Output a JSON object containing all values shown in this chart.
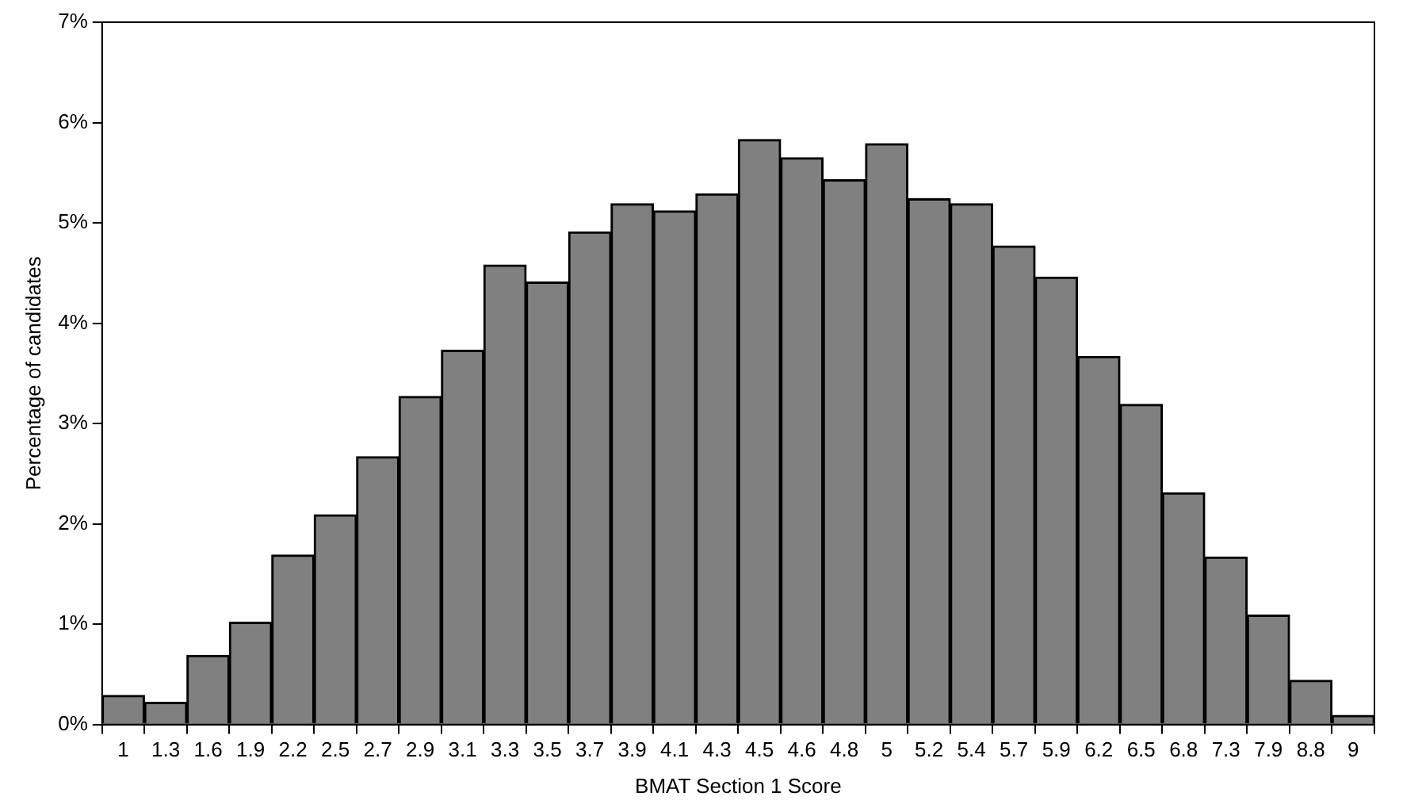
{
  "chart_data": {
    "type": "bar",
    "xlabel": "BMAT Section 1 Score",
    "ylabel": "Percentage of candidates",
    "categories": [
      "1",
      "1.3",
      "1.6",
      "1.9",
      "2.2",
      "2.5",
      "2.7",
      "2.9",
      "3.1",
      "3.3",
      "3.5",
      "3.7",
      "3.9",
      "4.1",
      "4.3",
      "4.5",
      "4.6",
      "4.8",
      "5",
      "5.2",
      "5.4",
      "5.7",
      "5.9",
      "6.2",
      "6.5",
      "6.8",
      "7.3",
      "7.9",
      "8.8",
      "9"
    ],
    "values": [
      0.29,
      0.22,
      0.69,
      1.02,
      1.69,
      2.09,
      2.67,
      3.27,
      3.73,
      4.58,
      4.41,
      4.91,
      5.19,
      5.12,
      5.29,
      5.83,
      5.65,
      5.43,
      5.79,
      5.24,
      5.19,
      4.77,
      4.46,
      3.67,
      3.19,
      2.31,
      1.67,
      1.09,
      0.44,
      0.09
    ],
    "color": "#808080",
    "ylim": [
      0,
      7
    ],
    "yticks": [
      {
        "value": 0,
        "label": "0%"
      },
      {
        "value": 1,
        "label": "1%"
      },
      {
        "value": 2,
        "label": "2%"
      },
      {
        "value": 3,
        "label": "3%"
      },
      {
        "value": 4,
        "label": "4%"
      },
      {
        "value": 5,
        "label": "5%"
      },
      {
        "value": 6,
        "label": "6%"
      },
      {
        "value": 7,
        "label": "7%"
      }
    ],
    "grid": false,
    "legend": false
  }
}
